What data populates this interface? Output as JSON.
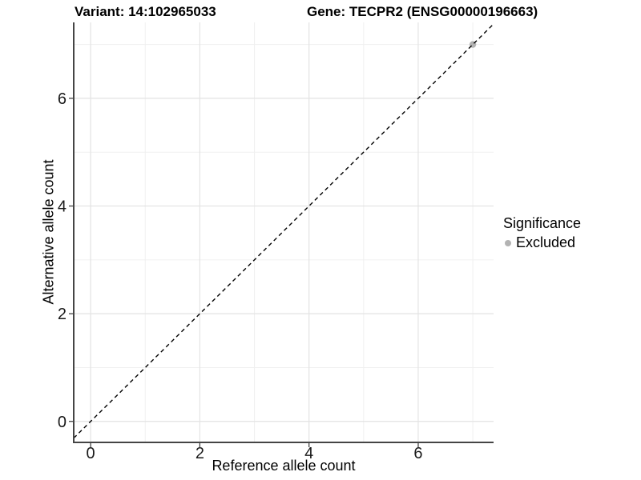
{
  "chart_data": {
    "type": "scatter",
    "title_left": "Variant: 14:102965033",
    "title_right": "Gene: TECPR2 (ENSG00000196663)",
    "xlabel": "Reference allele count",
    "ylabel": "Alternative allele count",
    "xlim": [
      -0.31,
      7.38
    ],
    "ylim": [
      -0.39,
      7.41
    ],
    "x_ticks": [
      0,
      2,
      4,
      6
    ],
    "y_ticks": [
      0,
      2,
      4,
      6
    ],
    "x_minor_ticks": [
      1,
      3,
      5,
      7
    ],
    "y_minor_ticks": [
      1,
      3,
      5,
      7
    ],
    "grid": true,
    "legend_position": "right",
    "reference_line": {
      "slope": 1,
      "intercept": 0,
      "style": "dashed",
      "color": "#000000"
    },
    "series": [
      {
        "name": "Excluded",
        "color": "#b3b3b3",
        "points": [
          {
            "x": 7,
            "y": 7,
            "significance": "Excluded"
          }
        ]
      }
    ],
    "legend": {
      "title": "Significance",
      "entries": [
        {
          "label": "Excluded",
          "color": "#b3b3b3"
        }
      ]
    },
    "colors": {
      "axis_line": "#454545",
      "tick_mark": "#333333",
      "tick_label": "#1a1a1a",
      "grid_major": "#e3e3e3",
      "grid_minor": "#f0f0f0",
      "background": "#ffffff"
    }
  }
}
